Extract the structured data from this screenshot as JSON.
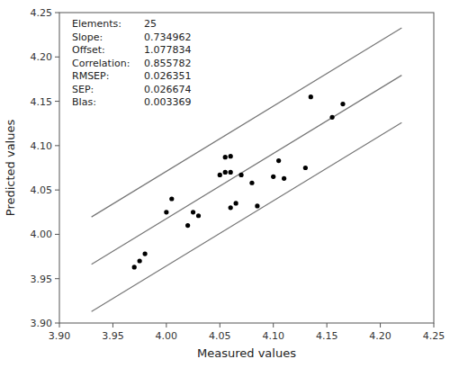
{
  "chart_data": {
    "type": "scatter",
    "x_label": "Measured values",
    "y_label": "Predicted values",
    "xlim": [
      3.9,
      4.25
    ],
    "ylim": [
      3.9,
      4.25
    ],
    "xticks": [
      {
        "value": 3.9,
        "label": "3.90"
      },
      3.95,
      {
        "value": 4.0,
        "label": "4.00"
      },
      4.05,
      {
        "value": 4.1,
        "label": "4.10"
      },
      4.15,
      {
        "value": 4.2,
        "label": "4.20"
      },
      4.25
    ],
    "yticks": [
      {
        "value": 3.9,
        "label": "3.90"
      },
      3.95,
      {
        "value": 4.0,
        "label": "4.00"
      },
      4.05,
      {
        "value": 4.1,
        "label": "4.10"
      },
      4.15,
      {
        "value": 4.2,
        "label": "4.20"
      },
      4.25
    ],
    "grid": false,
    "series": [
      {
        "type": "scatter",
        "color": "black",
        "marker": "circle",
        "x": [
          3.97,
          3.975,
          3.98,
          4.0,
          4.005,
          4.02,
          4.025,
          4.03,
          4.05,
          4.055,
          4.055,
          4.06,
          4.06,
          4.06,
          4.065,
          4.07,
          4.08,
          4.085,
          4.1,
          4.105,
          4.11,
          4.13,
          4.135,
          4.155,
          4.165
        ],
        "values": [
          3.963,
          3.97,
          3.978,
          4.025,
          4.04,
          4.01,
          4.025,
          4.021,
          4.067,
          4.087,
          4.07,
          4.088,
          4.07,
          4.03,
          4.035,
          4.067,
          4.058,
          4.032,
          4.065,
          4.083,
          4.063,
          4.075,
          4.155,
          4.132,
          4.147
        ]
      },
      {
        "type": "line",
        "color": "#777777",
        "x": [
          3.93,
          4.22
        ],
        "values": [
          3.96623466,
          4.17937364
        ]
      },
      {
        "type": "line",
        "color": "#777777",
        "x": [
          3.93,
          4.22
        ],
        "values": [
          4.01958266,
          4.23272164
        ]
      },
      {
        "type": "line",
        "color": "#777777",
        "x": [
          3.93,
          4.22
        ],
        "values": [
          3.91288666,
          4.12602564
        ]
      }
    ],
    "annotations": [
      {
        "label": "Elements:",
        "text": "25"
      },
      {
        "label": "Slope:",
        "text": "0.734962"
      },
      {
        "label": "Offset:",
        "text": "1.077834"
      },
      {
        "label": "Correlation:",
        "text": "0.855782"
      },
      {
        "label": "RMSEP:",
        "text": "0.026351"
      },
      {
        "label": "SEP:",
        "text": "0.026674"
      },
      {
        "label": "BIas:",
        "text": "0.003369"
      }
    ]
  }
}
